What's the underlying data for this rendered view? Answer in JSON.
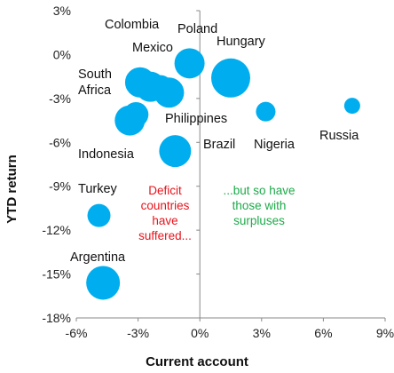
{
  "chart_data": {
    "type": "scatter",
    "xlabel": "Current account",
    "ylabel": "YTD return",
    "xlim": [
      -6,
      9
    ],
    "ylim": [
      -18,
      3
    ],
    "x_ticks": [
      -6,
      -3,
      0,
      3,
      6,
      9
    ],
    "y_ticks": [
      3,
      0,
      -3,
      -6,
      -9,
      -12,
      -15,
      -18
    ],
    "x_tick_labels": [
      "-6%",
      "-3%",
      "0%",
      "3%",
      "6%",
      "9%"
    ],
    "y_tick_labels": [
      "3%",
      "0%",
      "-3%",
      "-6%",
      "-9%",
      "-12%",
      "-15%",
      "-18%"
    ],
    "grid": false,
    "point_color": "#00AEEF",
    "points": [
      {
        "label": "Colombia",
        "x": -2.4,
        "y": -2.2,
        "size": 17
      },
      {
        "label": "Poland",
        "x": -0.5,
        "y": -0.6,
        "size": 17
      },
      {
        "label": "Mexico",
        "x": -1.5,
        "y": -2.6,
        "size": 17
      },
      {
        "label": "Hungary",
        "x": 1.5,
        "y": -1.6,
        "size": 22
      },
      {
        "label": "South Africa",
        "x": -2.9,
        "y": -1.9,
        "size": 17
      },
      {
        "label": "",
        "x": -1.9,
        "y": -2.2,
        "size": 13
      },
      {
        "label": "Philippines",
        "x": -3.1,
        "y": -4.1,
        "size": 14
      },
      {
        "label": "Indonesia",
        "x": -3.4,
        "y": -4.5,
        "size": 17
      },
      {
        "label": "Brazil",
        "x": -1.2,
        "y": -6.6,
        "size": 18
      },
      {
        "label": "Nigeria",
        "x": 3.2,
        "y": -3.9,
        "size": 11
      },
      {
        "label": "Russia",
        "x": 7.4,
        "y": -3.5,
        "size": 9
      },
      {
        "label": "Turkey",
        "x": -4.9,
        "y": -11.0,
        "size": 13
      },
      {
        "label": "Argentina",
        "x": -4.7,
        "y": -15.6,
        "size": 19
      }
    ],
    "annotations": [
      {
        "text": "Deficit countries have suffered...",
        "color": "#E8131B"
      },
      {
        "text": "...but so have those with surpluses",
        "color": "#1DAA4A"
      }
    ]
  }
}
